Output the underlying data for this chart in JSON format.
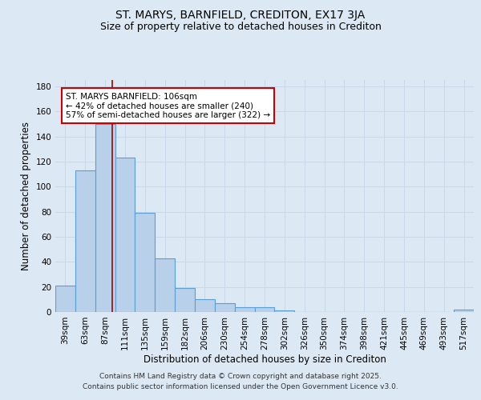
{
  "title": "ST. MARYS, BARNFIELD, CREDITON, EX17 3JA",
  "subtitle": "Size of property relative to detached houses in Crediton",
  "xlabel": "Distribution of detached houses by size in Crediton",
  "ylabel": "Number of detached properties",
  "bar_labels": [
    "39sqm",
    "63sqm",
    "87sqm",
    "111sqm",
    "135sqm",
    "159sqm",
    "182sqm",
    "206sqm",
    "230sqm",
    "254sqm",
    "278sqm",
    "302sqm",
    "326sqm",
    "350sqm",
    "374sqm",
    "398sqm",
    "421sqm",
    "445sqm",
    "469sqm",
    "493sqm",
    "517sqm"
  ],
  "bar_values": [
    21,
    113,
    150,
    123,
    79,
    43,
    19,
    10,
    7,
    4,
    4,
    1,
    0,
    0,
    0,
    0,
    0,
    0,
    0,
    0,
    2
  ],
  "bar_color": "#b8d0ea",
  "bar_edge_color": "#5a9fd4",
  "red_line_x": 2.35,
  "ylim": [
    0,
    185
  ],
  "yticks": [
    0,
    20,
    40,
    60,
    80,
    100,
    120,
    140,
    160,
    180
  ],
  "annotation_text": "ST. MARYS BARNFIELD: 106sqm\n← 42% of detached houses are smaller (240)\n57% of semi-detached houses are larger (322) →",
  "annotation_box_color": "#ffffff",
  "annotation_box_edge": "#cc0000",
  "red_line_color": "#aa0000",
  "grid_color": "#c8d8e8",
  "background_color": "#dce8f4",
  "footer_text": "Contains HM Land Registry data © Crown copyright and database right 2025.\nContains public sector information licensed under the Open Government Licence v3.0.",
  "title_fontsize": 10,
  "subtitle_fontsize": 9,
  "axis_label_fontsize": 8.5,
  "tick_fontsize": 7.5,
  "annotation_fontsize": 7.5,
  "footer_fontsize": 6.5
}
